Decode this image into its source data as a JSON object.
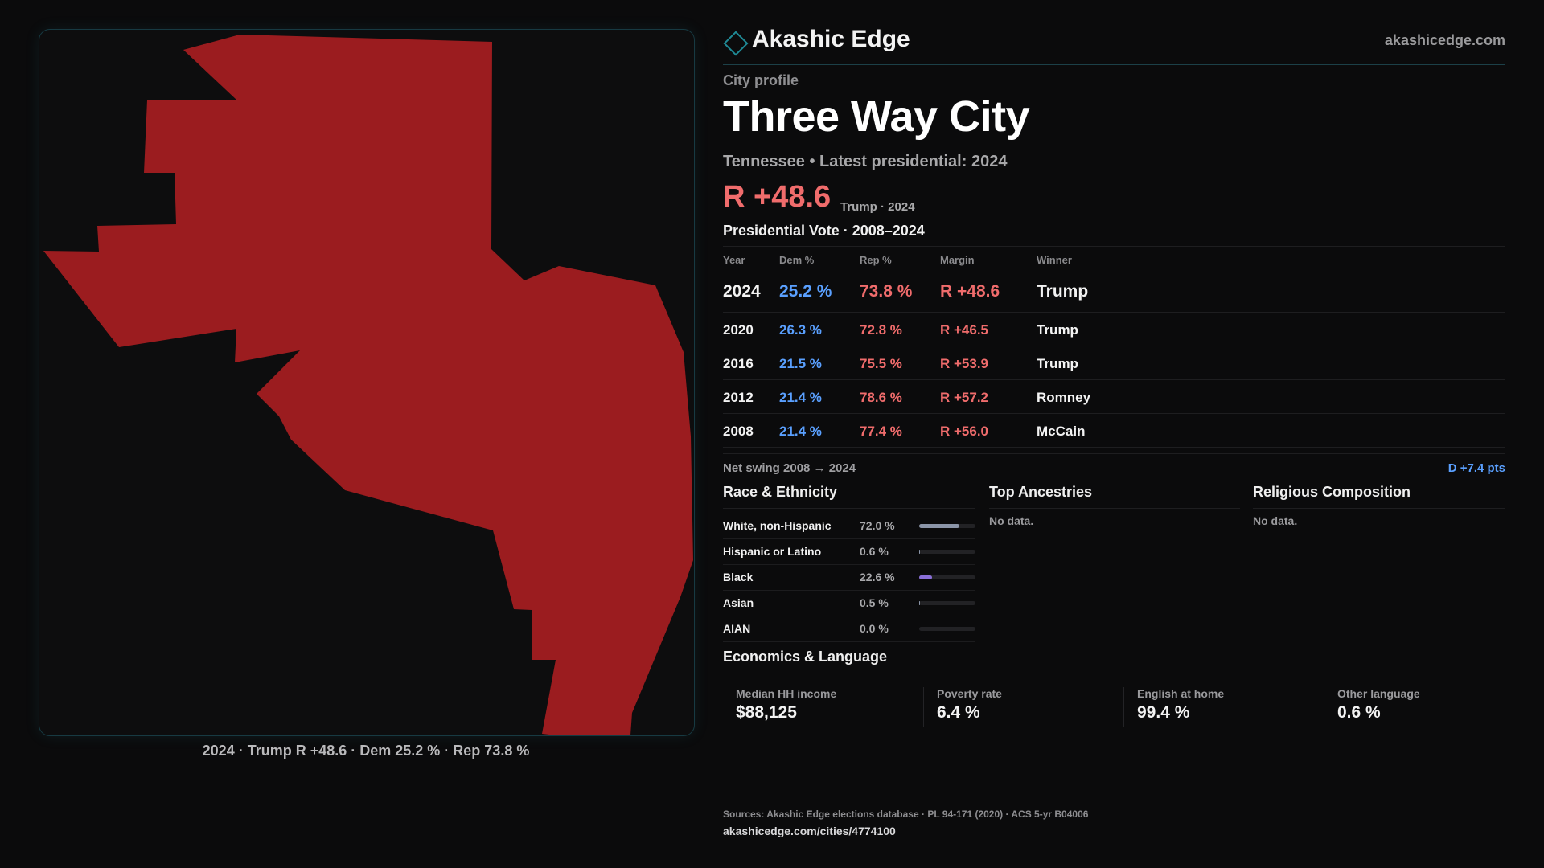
{
  "brand": {
    "name": "Akashic Edge",
    "url": "akashicedge.com"
  },
  "map": {
    "caption": "2024 · Trump R +48.6 · Dem 25.2 % · Rep 73.8 %",
    "fill_color": "#9b1c1f"
  },
  "profile": {
    "kicker": "City profile",
    "title": "Three Way City",
    "subtitle": "Tennessee • Latest presidential: 2024",
    "margin": "R +48.6",
    "margin_note": "Trump · 2024"
  },
  "vote_table": {
    "title": "Presidential Vote · 2008–2024",
    "columns": [
      "Year",
      "Dem %",
      "Rep %",
      "Margin",
      "Winner"
    ],
    "rows": [
      {
        "year": "2024",
        "dem": "25.2 %",
        "rep": "73.8 %",
        "margin": "R +48.6",
        "winner": "Trump"
      },
      {
        "year": "2020",
        "dem": "26.3 %",
        "rep": "72.8 %",
        "margin": "R +46.5",
        "winner": "Trump"
      },
      {
        "year": "2016",
        "dem": "21.5 %",
        "rep": "75.5 %",
        "margin": "R +53.9",
        "winner": "Trump"
      },
      {
        "year": "2012",
        "dem": "21.4 %",
        "rep": "78.6 %",
        "margin": "R +57.2",
        "winner": "Romney"
      },
      {
        "year": "2008",
        "dem": "21.4 %",
        "rep": "77.4 %",
        "margin": "R +56.0",
        "winner": "McCain"
      }
    ]
  },
  "swing": {
    "label": "Net swing 2008 → 2024",
    "value": "D +7.4 pts"
  },
  "race": {
    "title": "Race & Ethnicity",
    "rows": [
      {
        "name": "White, non-Hispanic",
        "pct": "72.0 %",
        "share": 0.72,
        "color": "#8b95a8"
      },
      {
        "name": "Hispanic or Latino",
        "pct": "0.6 %",
        "share": 0.006,
        "color": "#8b95a8"
      },
      {
        "name": "Black",
        "pct": "22.6 %",
        "share": 0.226,
        "color": "#8a6fd8"
      },
      {
        "name": "Asian",
        "pct": "0.5 %",
        "share": 0.005,
        "color": "#8b95a8"
      },
      {
        "name": "AIAN",
        "pct": "0.0 %",
        "share": 0.0,
        "color": "#8b95a8"
      }
    ]
  },
  "ancestries": {
    "title": "Top Ancestries",
    "empty": "No data."
  },
  "religion": {
    "title": "Religious Composition",
    "empty": "No data."
  },
  "economics": {
    "title": "Economics & Language",
    "cells": [
      {
        "label": "Median HH income",
        "value": "$88,125"
      },
      {
        "label": "Poverty rate",
        "value": "6.4 %"
      },
      {
        "label": "English at home",
        "value": "99.4 %"
      },
      {
        "label": "Other language",
        "value": "0.6 %"
      }
    ]
  },
  "footer": {
    "sources": "Sources: Akashic Edge elections database · PL 94-171 (2020) · ACS 5-yr B04006",
    "page_url": "akashicedge.com/cities/4774100"
  }
}
